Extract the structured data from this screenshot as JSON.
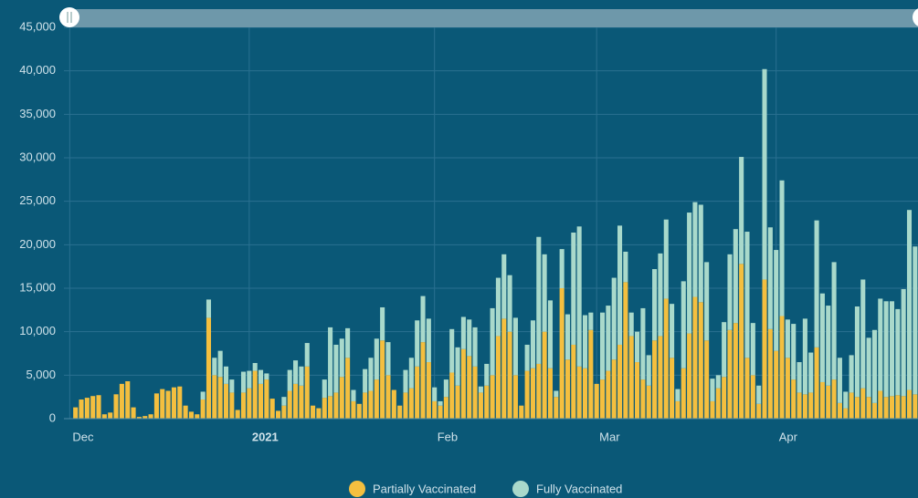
{
  "chart_data": {
    "type": "stacked-bar",
    "xlim": [
      -2,
      145.5
    ],
    "xticks": [
      {
        "value": -1,
        "label": "Dec"
      },
      {
        "value": 30,
        "label": "2021",
        "bold": true
      },
      {
        "value": 62,
        "label": "Feb"
      },
      {
        "value": 90,
        "label": "Mar"
      },
      {
        "value": 121,
        "label": "Apr"
      }
    ],
    "ylim": [
      0,
      45000
    ],
    "yticks": [
      0,
      {
        "value": 5000,
        "label": "5,000"
      },
      {
        "value": 10000,
        "label": "10,000"
      },
      {
        "value": 15000,
        "label": "15,000"
      },
      {
        "value": 20000,
        "label": "20,000"
      },
      {
        "value": 25000,
        "label": "25,000"
      },
      {
        "value": 30000,
        "label": "30,000"
      },
      {
        "value": 35000,
        "label": "35,000"
      },
      {
        "value": 40000,
        "label": "40,000"
      },
      {
        "value": 45000,
        "label": "45,000"
      }
    ],
    "grid": true,
    "legend": "bottom",
    "series": [
      {
        "name": "Partially Vaccinated",
        "color": "#f4bf3f",
        "values": [
          1300,
          2200,
          2400,
          2600,
          2700,
          500,
          700,
          2800,
          4000,
          4300,
          1300,
          200,
          300,
          500,
          2900,
          3400,
          3200,
          3600,
          3700,
          1500,
          800,
          500,
          2200,
          11600,
          5000,
          4800,
          4000,
          3000,
          1000,
          3000,
          3500,
          5500,
          4000,
          4500,
          2300,
          900,
          1500,
          3200,
          4000,
          3800,
          6000,
          1500,
          1200,
          2400,
          2600,
          3000,
          4800,
          7000,
          2000,
          1700,
          3000,
          3200,
          4500,
          9000,
          5000,
          3300,
          1500,
          3000,
          3500,
          6000,
          8800,
          6500,
          2000,
          1500,
          2500,
          5300,
          3800,
          8000,
          7200,
          6000,
          3000,
          3800,
          5000,
          9500,
          11500,
          10000,
          5000,
          1500,
          5500,
          5800,
          6300,
          10000,
          5800,
          2500,
          15000,
          6800,
          8500,
          6000,
          5800,
          10200,
          4000,
          4500,
          5500,
          6800,
          8500,
          15700,
          9500,
          6500,
          4500,
          3800,
          9000,
          9500,
          13800,
          7000,
          2000,
          5800,
          9800,
          14000,
          13400,
          9000,
          2000,
          3500,
          4800,
          10200,
          11000,
          17800,
          7000,
          5000,
          1700,
          16000,
          10300,
          7800,
          11800,
          7000,
          4500,
          3000,
          2800,
          3000,
          8200,
          4200,
          3800,
          4500,
          1800,
          1200,
          3000,
          2500,
          3500,
          2500,
          1800,
          3200,
          2500,
          2600,
          2700,
          2600,
          3300,
          2800
        ]
      },
      {
        "name": "Fully Vaccinated",
        "color": "#a9d9cb",
        "values": [
          0,
          0,
          0,
          0,
          0,
          0,
          0,
          0,
          0,
          0,
          0,
          0,
          0,
          0,
          0,
          0,
          0,
          0,
          0,
          0,
          0,
          0,
          900,
          2100,
          2000,
          3000,
          2000,
          1500,
          0,
          2400,
          2000,
          900,
          1600,
          700,
          0,
          0,
          1000,
          2400,
          2700,
          2200,
          2700,
          0,
          0,
          2100,
          7900,
          5500,
          4400,
          3400,
          1300,
          0,
          2700,
          3800,
          4700,
          3800,
          3800,
          0,
          0,
          2600,
          3500,
          5300,
          5300,
          5000,
          1600,
          500,
          2000,
          5000,
          4400,
          3700,
          4200,
          4500,
          700,
          2500,
          7700,
          6700,
          7400,
          6500,
          6600,
          0,
          3000,
          5500,
          14600,
          8900,
          7800,
          700,
          4500,
          5200,
          12900,
          16100,
          6100,
          2000,
          0,
          7700,
          7500,
          9400,
          13700,
          3500,
          2700,
          3500,
          8200,
          3500,
          8200,
          9500,
          9100,
          6200,
          1400,
          10000,
          13900,
          10900,
          11200,
          9000,
          2600,
          1500,
          6300,
          8700,
          10800,
          12300,
          14500,
          6000,
          2100,
          24200,
          11700,
          11600,
          15600,
          4400,
          6400,
          3500,
          8700,
          4600,
          14600,
          10200,
          9200,
          13500,
          5200,
          1900,
          4300,
          10400,
          12500,
          6800,
          8400,
          10600,
          11000,
          10900,
          9900,
          12300,
          20700,
          17000
        ]
      }
    ]
  }
}
